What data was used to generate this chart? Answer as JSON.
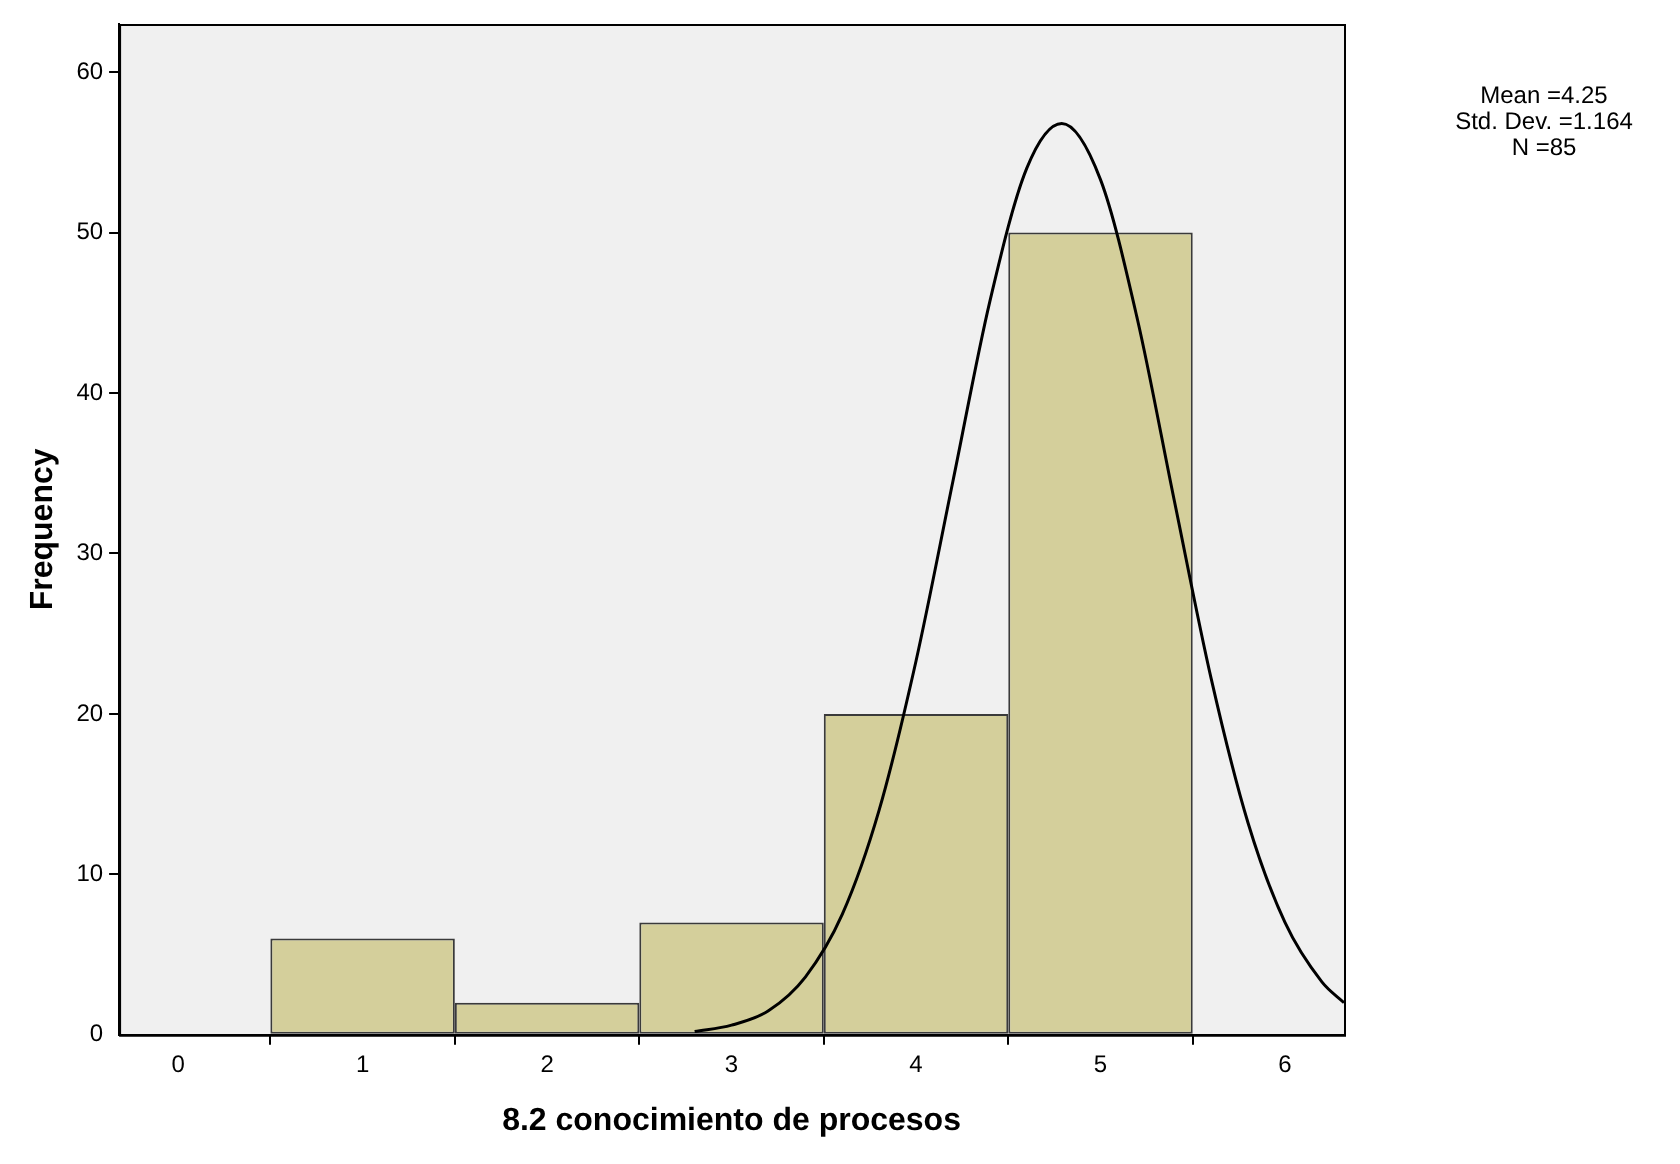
{
  "chart_data": {
    "type": "histogram",
    "xlabel": "8.2 conocimiento de procesos",
    "ylabel": "Frequency",
    "bins": [
      0.5,
      1.5,
      2.5,
      3.5,
      4.5,
      5.5
    ],
    "series": [
      {
        "color": "#d4cf9b",
        "values": [
          6,
          2,
          7,
          20,
          50
        ]
      },
      {
        "type": "line",
        "color": "#000000",
        "x": [
          2.8,
          3.0,
          3.2,
          3.4,
          3.6,
          3.8,
          4.0,
          4.2,
          4.4,
          4.6,
          4.79,
          5.0,
          5.2,
          5.4,
          5.6,
          5.8,
          6.0,
          6.2,
          6.32
        ],
        "values": [
          0.2,
          0.6,
          1.5,
          3.6,
          7.5,
          14,
          23.3,
          34.5,
          45.7,
          54,
          56.8,
          53.3,
          44.6,
          33.3,
          22.2,
          13.2,
          7,
          3.3,
          2
        ]
      }
    ],
    "xlim": [
      -0.32,
      6.32
    ],
    "xticks": [
      0,
      1,
      2,
      3,
      4,
      5,
      6
    ],
    "ylim": [
      0,
      63
    ],
    "yticks": [
      0,
      10,
      20,
      30,
      40,
      50,
      60
    ],
    "grid": false,
    "legend": false,
    "marker": "none",
    "line_style": "solid",
    "annotations": [
      "Mean =4.25",
      "Std. Dev. =1.164",
      "N =85"
    ]
  }
}
